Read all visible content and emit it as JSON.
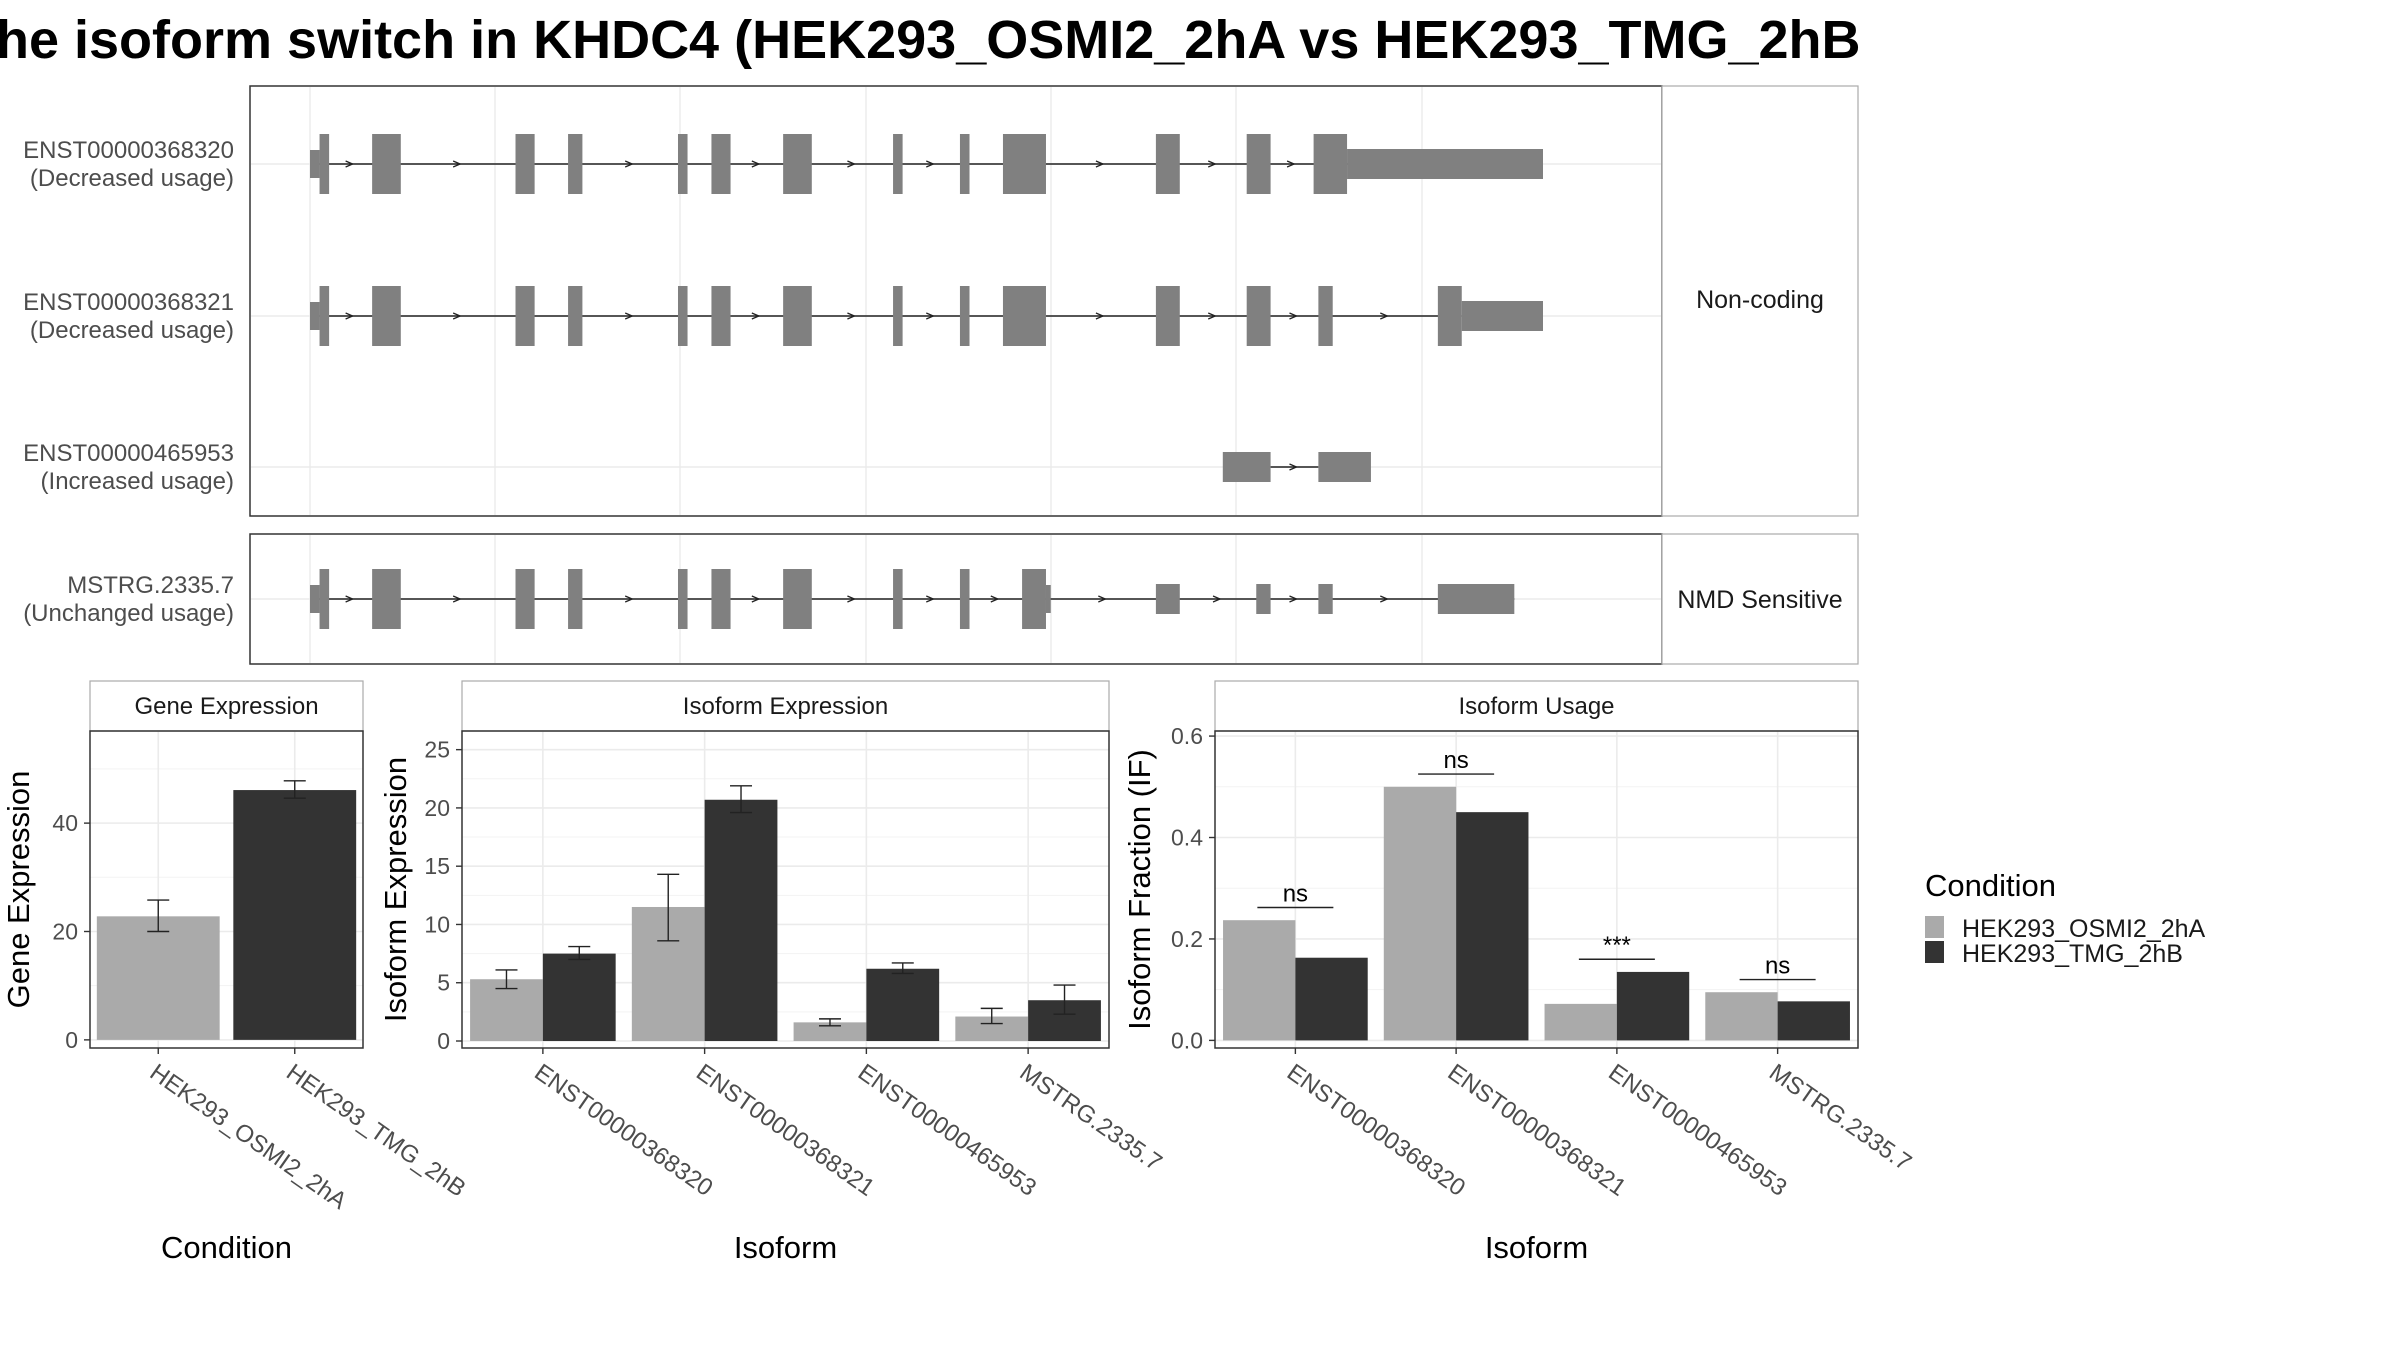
{
  "title": "he isoform switch in KHDC4 (HEK293_OSMI2_2hA vs HEK293_TMG_2hB",
  "colors": {
    "exon": "#808080",
    "cond_a": "#aaaaaa",
    "cond_b": "#333333",
    "grid": "#ebebeb",
    "panel_border": "#333333",
    "strip_border": "#aaaaaa"
  },
  "transcripts": {
    "coding_group_label": "Non-coding",
    "nmd_group_label": "NMD Sensitive",
    "coding": [
      {
        "id": "ENST00000368320",
        "usage": "(Decreased usage)",
        "exons": [
          [
            1,
            3,
            "thin"
          ],
          [
            3,
            5,
            "tall"
          ],
          [
            14,
            20,
            "tall"
          ],
          [
            44,
            48,
            "tall"
          ],
          [
            55,
            58,
            "tall"
          ],
          [
            78,
            80,
            "tall"
          ],
          [
            85,
            89,
            "tall"
          ],
          [
            100,
            106,
            "tall"
          ],
          [
            123,
            125,
            "tall"
          ],
          [
            137,
            139,
            "tall"
          ],
          [
            146,
            155,
            "tall"
          ],
          [
            178,
            183,
            "tall"
          ],
          [
            197,
            202,
            "tall"
          ],
          [
            211,
            218,
            "tall"
          ],
          [
            218,
            259,
            "thick"
          ]
        ],
        "line": [
          1,
          259
        ]
      },
      {
        "id": "ENST00000368321",
        "usage": "(Decreased usage)",
        "exons": [
          [
            1,
            3,
            "thin"
          ],
          [
            3,
            5,
            "tall"
          ],
          [
            14,
            20,
            "tall"
          ],
          [
            44,
            48,
            "tall"
          ],
          [
            55,
            58,
            "tall"
          ],
          [
            78,
            80,
            "tall"
          ],
          [
            85,
            89,
            "tall"
          ],
          [
            100,
            106,
            "tall"
          ],
          [
            123,
            125,
            "tall"
          ],
          [
            137,
            139,
            "tall"
          ],
          [
            146,
            155,
            "tall"
          ],
          [
            178,
            183,
            "tall"
          ],
          [
            197,
            202,
            "tall"
          ],
          [
            212,
            215,
            "tall"
          ],
          [
            237,
            242,
            "tall"
          ],
          [
            242,
            259,
            "thick"
          ]
        ],
        "line": [
          1,
          242
        ]
      },
      {
        "id": "ENST00000465953",
        "usage": "(Increased usage)",
        "exons": [
          [
            192,
            202,
            "thick"
          ],
          [
            212,
            223,
            "thick"
          ]
        ],
        "line": [
          202,
          212
        ]
      }
    ],
    "nmd": [
      {
        "id": "MSTRG.2335.7",
        "usage": "(Unchanged usage)",
        "exons": [
          [
            1,
            3,
            "thin"
          ],
          [
            3,
            5,
            "tall"
          ],
          [
            14,
            20,
            "tall"
          ],
          [
            44,
            48,
            "tall"
          ],
          [
            55,
            58,
            "tall"
          ],
          [
            78,
            80,
            "tall"
          ],
          [
            85,
            89,
            "tall"
          ],
          [
            100,
            106,
            "tall"
          ],
          [
            123,
            125,
            "tall"
          ],
          [
            137,
            139,
            "tall"
          ],
          [
            150,
            155,
            "tall"
          ],
          [
            155,
            156,
            "thin"
          ],
          [
            178,
            183,
            "thick"
          ],
          [
            199,
            202,
            "thick"
          ],
          [
            212,
            215,
            "thick"
          ],
          [
            237,
            253,
            "thick"
          ]
        ],
        "line": [
          1,
          253
        ]
      }
    ]
  },
  "legend": {
    "title": "Condition",
    "items": [
      {
        "label": "HEK293_OSMI2_2hA",
        "color": "#aaaaaa"
      },
      {
        "label": "HEK293_TMG_2hB",
        "color": "#333333"
      }
    ]
  },
  "chart_data": [
    {
      "type": "bar",
      "title": "Gene Expression",
      "xlabel": "Condition",
      "ylabel": "Gene Expression",
      "categories": [
        "HEK293_OSMI2_2hA",
        "HEK293_TMG_2hB"
      ],
      "values": [
        22.8,
        46.1
      ],
      "errors": [
        [
          20.0,
          25.8
        ],
        [
          44.6,
          47.8
        ]
      ],
      "colors": [
        "#aaaaaa",
        "#333333"
      ],
      "ylim": [
        -1.5,
        57
      ],
      "yticks": [
        0,
        20,
        40
      ]
    },
    {
      "type": "bar",
      "title": "Isoform Expression",
      "xlabel": "Isoform",
      "ylabel": "Isoform Expression",
      "categories": [
        "ENST00000368320",
        "ENST00000368321",
        "ENST00000465953",
        "MSTRG.2335.7"
      ],
      "ylim": [
        -0.6,
        26.6
      ],
      "yticks": [
        0,
        5,
        10,
        15,
        20,
        25
      ],
      "series": [
        {
          "name": "HEK293_OSMI2_2hA",
          "values": [
            5.3,
            11.5,
            1.6,
            2.1
          ],
          "errors": [
            [
              4.5,
              6.1
            ],
            [
              8.6,
              14.3
            ],
            [
              1.3,
              1.9
            ],
            [
              1.5,
              2.8
            ]
          ]
        },
        {
          "name": "HEK293_TMG_2hB",
          "values": [
            7.5,
            20.7,
            6.2,
            3.5
          ],
          "errors": [
            [
              7.0,
              8.1
            ],
            [
              19.6,
              21.9
            ],
            [
              5.8,
              6.7
            ],
            [
              2.3,
              4.8
            ]
          ]
        }
      ]
    },
    {
      "type": "bar",
      "title": "Isoform Usage",
      "xlabel": "Isoform",
      "ylabel": "Isoform Fraction (IF)",
      "categories": [
        "ENST00000368320",
        "ENST00000368321",
        "ENST00000465953",
        "MSTRG.2335.7"
      ],
      "ylim": [
        -0.015,
        0.61
      ],
      "yticks": [
        0.0,
        0.2,
        0.4,
        0.6
      ],
      "series": [
        {
          "name": "HEK293_OSMI2_2hA",
          "values": [
            0.237,
            0.5,
            0.072,
            0.095
          ]
        },
        {
          "name": "HEK293_TMG_2hB",
          "values": [
            0.163,
            0.45,
            0.135,
            0.077
          ]
        }
      ],
      "annotations": [
        {
          "category": "ENST00000368320",
          "text": "ns",
          "y": 0.262
        },
        {
          "category": "ENST00000368321",
          "text": "ns",
          "y": 0.525
        },
        {
          "category": "ENST00000465953",
          "text": "***",
          "y": 0.16
        },
        {
          "category": "MSTRG.2335.7",
          "text": "ns",
          "y": 0.12
        }
      ]
    }
  ]
}
